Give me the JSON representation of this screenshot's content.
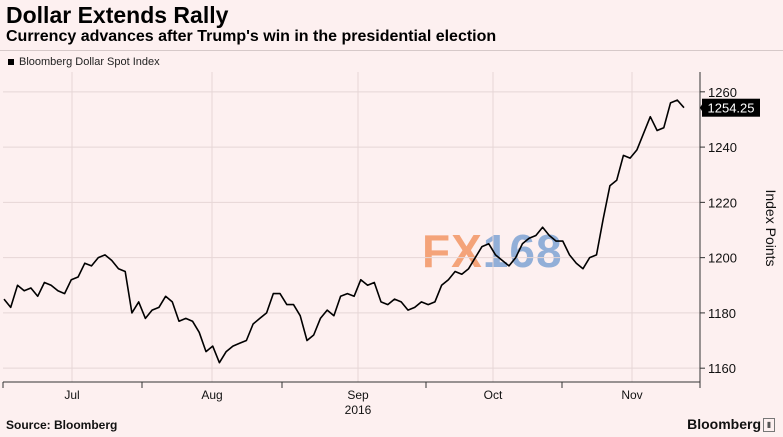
{
  "header": {
    "title": "Dollar Extends Rally",
    "subtitle": "Currency advances after Trump's win in the presidential election"
  },
  "legend": {
    "label": "Bloomberg Dollar Spot Index"
  },
  "watermark": {
    "part_a": "FX",
    "part_b": "168"
  },
  "footer": {
    "source": "Source: Bloomberg",
    "brand": "Bloomberg"
  },
  "colors": {
    "background": "#fdf0f0",
    "line": "#000000",
    "last_value_bg": "#000000",
    "last_value_text": "#ffffff"
  },
  "chart_data": {
    "type": "line",
    "title": "Dollar Extends Rally",
    "subtitle": "Currency advances after Trump's win in the presidential election",
    "ylabel": "Index Points",
    "xlabel": "",
    "x_ticks": [
      "Jul",
      "Aug",
      "Sep",
      "Oct",
      "Nov"
    ],
    "x_year_label": "2016",
    "y_ticks": [
      1160,
      1180,
      1200,
      1220,
      1240,
      1260
    ],
    "ylim": [
      1155,
      1265
    ],
    "grid": true,
    "legend_position": "top-left",
    "last_value_label": "1254.25",
    "series": [
      {
        "name": "Bloomberg Dollar Spot Index",
        "values": [
          1185,
          1182,
          1190,
          1188,
          1189,
          1186,
          1191,
          1190,
          1188,
          1187,
          1192,
          1193,
          1198,
          1197,
          1200,
          1201,
          1199,
          1196,
          1195,
          1180,
          1184,
          1178,
          1181,
          1182,
          1186,
          1184,
          1177,
          1178,
          1177,
          1173,
          1166,
          1168,
          1162,
          1166,
          1168,
          1169,
          1170,
          1176,
          1178,
          1180,
          1187,
          1187,
          1183,
          1183,
          1179,
          1170,
          1172,
          1178,
          1181,
          1179,
          1186,
          1187,
          1186,
          1192,
          1190,
          1191,
          1184,
          1183,
          1185,
          1184,
          1181,
          1182,
          1184,
          1183,
          1184,
          1190,
          1192,
          1195,
          1194,
          1196,
          1200,
          1204,
          1205,
          1201,
          1199,
          1197,
          1200,
          1205,
          1207,
          1208,
          1211,
          1208,
          1206,
          1206,
          1201,
          1198,
          1196,
          1200,
          1201,
          1214,
          1226,
          1228,
          1237,
          1236,
          1239,
          1245,
          1251,
          1246,
          1247,
          1256,
          1257,
          1254.25
        ]
      }
    ]
  }
}
